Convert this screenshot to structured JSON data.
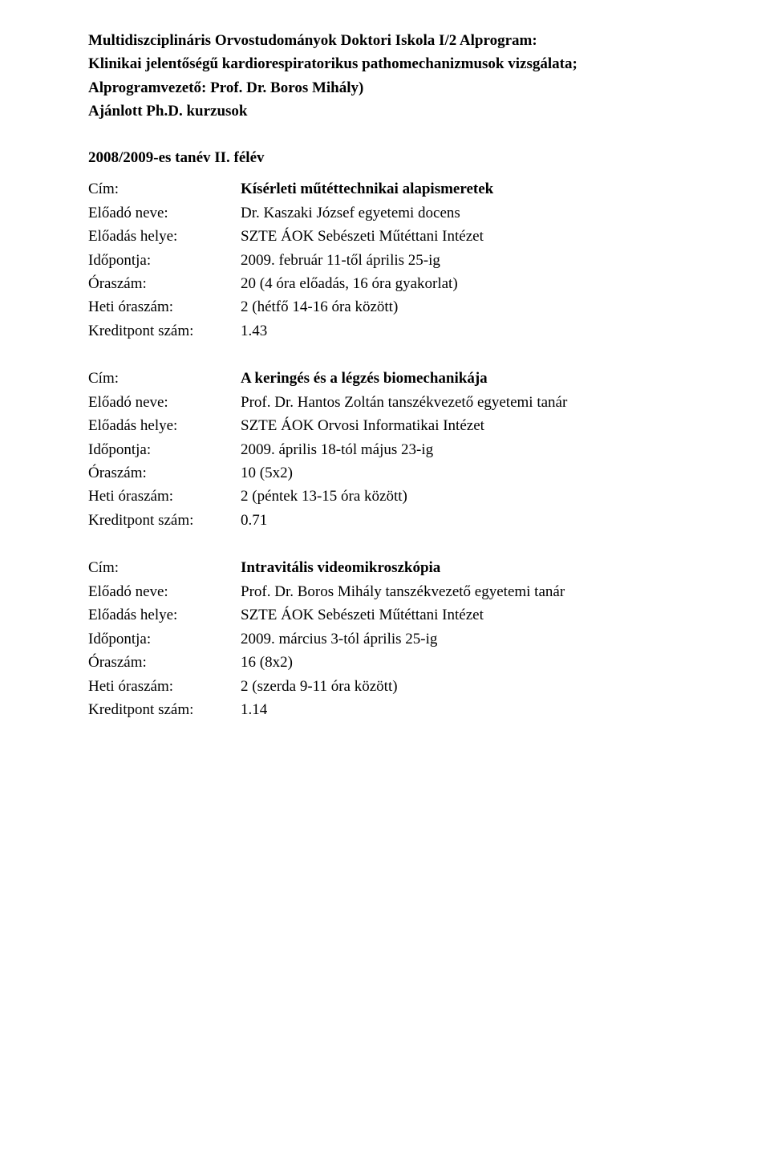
{
  "header": {
    "line1": "Multidiszciplináris Orvostudományok Doktori Iskola I/2 Alprogram:",
    "line2": "Klinikai jelentőségű kardiorespiratorikus pathomechanizmusok vizsgálata;",
    "line3": "Alprogramvezető: Prof. Dr. Boros Mihály)",
    "line4": "Ajánlott Ph.D. kurzusok"
  },
  "semester": "2008/2009-es tanév II. félév",
  "labels": {
    "cim": "Cím:",
    "eloado": "Előadó neve:",
    "helye": "Előadás helye:",
    "idopont": "Időpontja:",
    "oraszam": "Óraszám:",
    "heti": "Heti óraszám:",
    "kredit": "Kreditpont szám:"
  },
  "courses": [
    {
      "cim": "Kísérleti műtéttechnikai alapismeretek",
      "eloado": "Dr. Kaszaki József egyetemi docens",
      "helye": "SZTE ÁOK Sebészeti Műtéttani Intézet",
      "idopont": "2009. február 11-től április 25-ig",
      "oraszam": "20 (4 óra előadás, 16 óra gyakorlat)",
      "heti": "2 (hétfő 14-16 óra között)",
      "kredit": "1.43"
    },
    {
      "cim": "A keringés és a légzés biomechanikája",
      "eloado": "Prof. Dr. Hantos Zoltán tanszékvezető egyetemi tanár",
      "helye": "SZTE ÁOK Orvosi Informatikai Intézet",
      "idopont": "2009. április 18-tól május 23-ig",
      "oraszam": "10 (5x2)",
      "heti": "2 (péntek 13-15 óra között)",
      "kredit": "0.71"
    },
    {
      "cim": "Intravitális videomikroszkópia",
      "eloado": "Prof. Dr. Boros Mihály tanszékvezető egyetemi tanár",
      "helye": "SZTE ÁOK Sebészeti Műtéttani Intézet",
      "idopont": "2009. március 3-tól április 25-ig",
      "oraszam": "16 (8x2)",
      "heti": "2 (szerda 9-11 óra között)",
      "kredit": "1.14"
    }
  ]
}
